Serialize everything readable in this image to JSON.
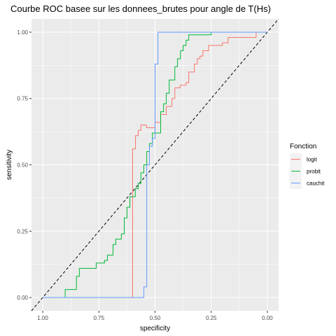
{
  "chart_data": {
    "type": "line",
    "title": "Courbe ROC basee sur les donnees_brutes pour angle de T(Hs)",
    "xlabel": "specificity",
    "ylabel": "sensitivity",
    "x_reversed": true,
    "xlim": [
      1.05,
      -0.05
    ],
    "ylim": [
      -0.05,
      1.05
    ],
    "x_ticks": [
      1.0,
      0.75,
      0.5,
      0.25,
      0.0
    ],
    "x_tick_labels": [
      "1.00",
      "0.75",
      "0.50",
      "0.25",
      "0.00"
    ],
    "y_ticks": [
      0.0,
      0.25,
      0.5,
      0.75,
      1.0
    ],
    "y_tick_labels": [
      "0.00",
      "0.25",
      "0.50",
      "0.75",
      "1.00"
    ],
    "grid": true,
    "legend": {
      "title": "Fonction",
      "position": "right"
    },
    "reference_line": {
      "from": [
        1.0,
        0.0
      ],
      "to": [
        0.0,
        1.0
      ],
      "style": "dashed",
      "color": "#000000"
    },
    "series": [
      {
        "name": "logit",
        "color": "#F8766D",
        "points": [
          [
            1.0,
            0.0
          ],
          [
            0.6,
            0.0
          ],
          [
            0.6,
            0.56
          ],
          [
            0.587,
            0.56
          ],
          [
            0.587,
            0.61
          ],
          [
            0.575,
            0.61
          ],
          [
            0.575,
            0.63
          ],
          [
            0.563,
            0.63
          ],
          [
            0.563,
            0.65
          ],
          [
            0.538,
            0.65
          ],
          [
            0.538,
            0.64
          ],
          [
            0.5,
            0.64
          ],
          [
            0.5,
            0.66
          ],
          [
            0.475,
            0.66
          ],
          [
            0.475,
            0.69
          ],
          [
            0.45,
            0.69
          ],
          [
            0.45,
            0.72
          ],
          [
            0.425,
            0.72
          ],
          [
            0.425,
            0.75
          ],
          [
            0.412,
            0.75
          ],
          [
            0.412,
            0.79
          ],
          [
            0.388,
            0.79
          ],
          [
            0.388,
            0.8
          ],
          [
            0.362,
            0.8
          ],
          [
            0.362,
            0.81
          ],
          [
            0.35,
            0.81
          ],
          [
            0.35,
            0.85
          ],
          [
            0.325,
            0.85
          ],
          [
            0.325,
            0.88
          ],
          [
            0.312,
            0.88
          ],
          [
            0.312,
            0.9
          ],
          [
            0.3,
            0.9
          ],
          [
            0.3,
            0.91
          ],
          [
            0.287,
            0.91
          ],
          [
            0.287,
            0.93
          ],
          [
            0.262,
            0.93
          ],
          [
            0.262,
            0.95
          ],
          [
            0.2,
            0.95
          ],
          [
            0.2,
            0.96
          ],
          [
            0.175,
            0.96
          ],
          [
            0.175,
            0.98
          ],
          [
            0.05,
            0.98
          ],
          [
            0.05,
            1.0
          ],
          [
            0.0,
            1.0
          ]
        ]
      },
      {
        "name": "probit",
        "color": "#00BA38",
        "points": [
          [
            1.0,
            0.0
          ],
          [
            0.9,
            0.0
          ],
          [
            0.9,
            0.03
          ],
          [
            0.85,
            0.03
          ],
          [
            0.85,
            0.08
          ],
          [
            0.837,
            0.08
          ],
          [
            0.837,
            0.11
          ],
          [
            0.762,
            0.11
          ],
          [
            0.762,
            0.13
          ],
          [
            0.725,
            0.13
          ],
          [
            0.725,
            0.14
          ],
          [
            0.712,
            0.14
          ],
          [
            0.712,
            0.16
          ],
          [
            0.687,
            0.16
          ],
          [
            0.687,
            0.2
          ],
          [
            0.675,
            0.2
          ],
          [
            0.675,
            0.22
          ],
          [
            0.65,
            0.22
          ],
          [
            0.65,
            0.24
          ],
          [
            0.637,
            0.24
          ],
          [
            0.637,
            0.3
          ],
          [
            0.625,
            0.3
          ],
          [
            0.625,
            0.34
          ],
          [
            0.612,
            0.34
          ],
          [
            0.612,
            0.38
          ],
          [
            0.588,
            0.38
          ],
          [
            0.588,
            0.41
          ],
          [
            0.575,
            0.41
          ],
          [
            0.575,
            0.43
          ],
          [
            0.563,
            0.43
          ],
          [
            0.563,
            0.47
          ],
          [
            0.55,
            0.47
          ],
          [
            0.55,
            0.5
          ],
          [
            0.537,
            0.5
          ],
          [
            0.537,
            0.55
          ],
          [
            0.525,
            0.55
          ],
          [
            0.525,
            0.58
          ],
          [
            0.512,
            0.58
          ],
          [
            0.512,
            0.62
          ],
          [
            0.475,
            0.62
          ],
          [
            0.475,
            0.7
          ],
          [
            0.462,
            0.7
          ],
          [
            0.462,
            0.73
          ],
          [
            0.45,
            0.73
          ],
          [
            0.45,
            0.77
          ],
          [
            0.437,
            0.77
          ],
          [
            0.437,
            0.82
          ],
          [
            0.412,
            0.82
          ],
          [
            0.412,
            0.87
          ],
          [
            0.4,
            0.87
          ],
          [
            0.4,
            0.9
          ],
          [
            0.387,
            0.9
          ],
          [
            0.387,
            0.93
          ],
          [
            0.375,
            0.93
          ],
          [
            0.375,
            0.95
          ],
          [
            0.362,
            0.95
          ],
          [
            0.362,
            0.97
          ],
          [
            0.35,
            0.97
          ],
          [
            0.35,
            0.99
          ],
          [
            0.25,
            0.99
          ],
          [
            0.25,
            1.0
          ],
          [
            0.0,
            1.0
          ]
        ]
      },
      {
        "name": "cauchit",
        "color": "#619CFF",
        "points": [
          [
            1.0,
            0.0
          ],
          [
            0.55,
            0.0
          ],
          [
            0.55,
            0.04
          ],
          [
            0.537,
            0.04
          ],
          [
            0.537,
            0.5
          ],
          [
            0.525,
            0.5
          ],
          [
            0.525,
            0.57
          ],
          [
            0.512,
            0.57
          ],
          [
            0.512,
            0.6
          ],
          [
            0.5,
            0.6
          ],
          [
            0.5,
            0.88
          ],
          [
            0.487,
            0.88
          ],
          [
            0.487,
            1.0
          ],
          [
            0.0,
            1.0
          ]
        ]
      }
    ]
  }
}
